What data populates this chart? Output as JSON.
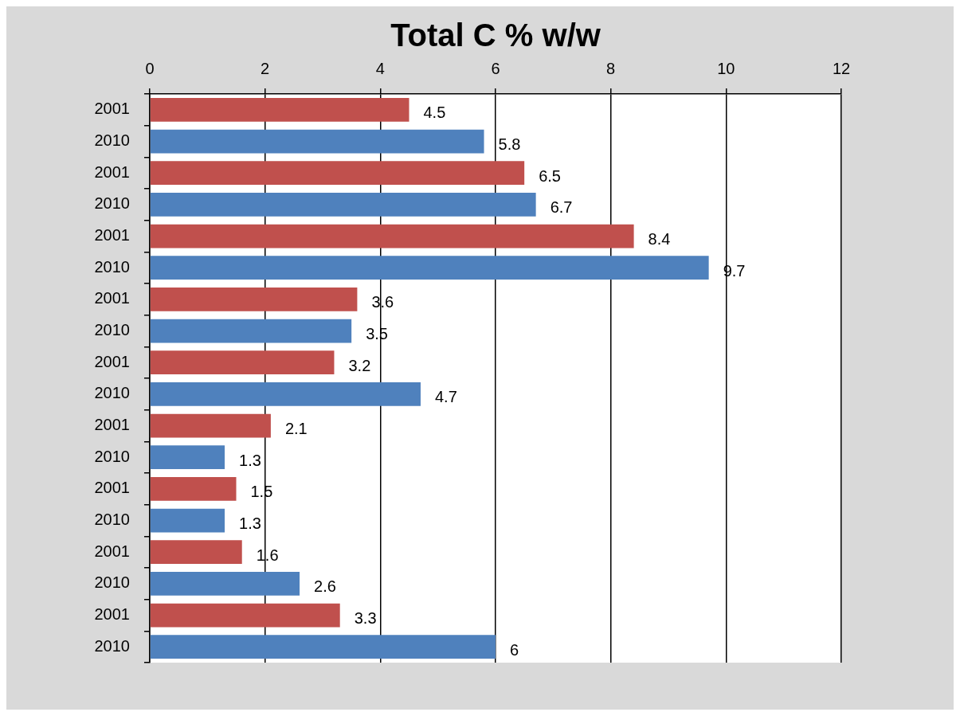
{
  "chart_data": {
    "type": "bar",
    "title": "Total C % w/w",
    "orientation": "horizontal",
    "categories": [
      "2001",
      "2010",
      "2001",
      "2010",
      "2001",
      "2010",
      "2001",
      "2010",
      "2001",
      "2010",
      "2001",
      "2010",
      "2001",
      "2010",
      "2001",
      "2010",
      "2001",
      "2010"
    ],
    "values": [
      4.5,
      5.8,
      6.5,
      6.7,
      8.4,
      9.7,
      3.6,
      3.5,
      3.2,
      4.7,
      2.1,
      1.3,
      1.5,
      1.3,
      1.6,
      2.6,
      3.3,
      6
    ],
    "colors": [
      "#c0504d",
      "#4f81bd",
      "#c0504d",
      "#4f81bd",
      "#c0504d",
      "#4f81bd",
      "#c0504d",
      "#4f81bd",
      "#c0504d",
      "#4f81bd",
      "#c0504d",
      "#4f81bd",
      "#c0504d",
      "#4f81bd",
      "#c0504d",
      "#4f81bd",
      "#c0504d",
      "#4f81bd"
    ],
    "xlim": [
      0,
      12
    ],
    "xticks": [
      0,
      2,
      4,
      6,
      8,
      10,
      12
    ],
    "grid": "x",
    "data_labels": true
  }
}
